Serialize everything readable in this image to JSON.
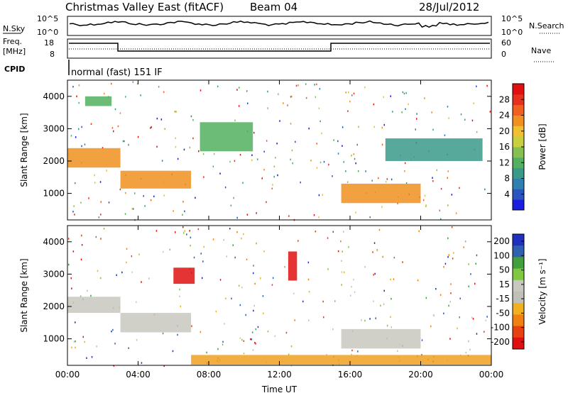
{
  "header": {
    "title": "Christmas Valley East (fitACF)",
    "beam": "Beam 04",
    "date": "28/Jul/2012"
  },
  "strip_labels": {
    "nsky": "N.Sky",
    "nsearch": "N.Search",
    "freq_line1": "Freq.",
    "freq_line2": "[MHz]",
    "nave": "Nave",
    "cpid": "CPID",
    "cpid_value": "normal (fast) 151 IF",
    "exp_labels": [
      "10^5",
      "10^0"
    ],
    "freq_ticks": [
      "18",
      "8"
    ],
    "nave_ticks": [
      "60",
      "0"
    ]
  },
  "chart_data": [
    {
      "type": "heatmap",
      "panel": "power",
      "ylabel": "Slant Range [km]",
      "xlabel": "",
      "x_ticks": [
        "00:00",
        "04:00",
        "08:00",
        "12:00",
        "16:00",
        "20:00",
        "00:00"
      ],
      "y_ticks": [
        1000,
        2000,
        3000,
        4000
      ],
      "xlim": [
        0,
        24
      ],
      "ylim": [
        180,
        4500
      ],
      "colorbar": {
        "label": "Power [dB]",
        "ticks": [
          4,
          8,
          12,
          16,
          20,
          24,
          28
        ],
        "range": [
          0,
          32
        ],
        "colors": [
          "#1a1ee0",
          "#2a55c0",
          "#2f7fb0",
          "#3a9a8a",
          "#52b060",
          "#88c050",
          "#c8d040",
          "#f0c030",
          "#f09020",
          "#f06020",
          "#e83020",
          "#e01010"
        ]
      },
      "features": [
        {
          "t_start": 0.0,
          "t_end": 3.0,
          "range_low": 1800,
          "range_high": 2400,
          "level": 22
        },
        {
          "t_start": 1.0,
          "t_end": 2.5,
          "range_low": 3700,
          "range_high": 4000,
          "level": 12
        },
        {
          "t_start": 3.0,
          "t_end": 7.0,
          "range_low": 1150,
          "range_high": 1700,
          "level": 22
        },
        {
          "t_start": 7.5,
          "t_end": 10.5,
          "range_low": 2300,
          "range_high": 3200,
          "level": 12
        },
        {
          "t_start": 15.5,
          "t_end": 20.0,
          "range_low": 700,
          "range_high": 1300,
          "level": 22
        },
        {
          "t_start": 18.0,
          "t_end": 23.5,
          "range_low": 2000,
          "range_high": 2700,
          "level": 8
        }
      ]
    },
    {
      "type": "heatmap",
      "panel": "velocity",
      "ylabel": "Slant Range [km]",
      "xlabel": "Time UT",
      "x_ticks": [
        "00:00",
        "04:00",
        "08:00",
        "12:00",
        "16:00",
        "20:00",
        "00:00"
      ],
      "y_ticks": [
        1000,
        2000,
        3000,
        4000
      ],
      "xlim": [
        0,
        24
      ],
      "ylim": [
        180,
        4500
      ],
      "colorbar": {
        "label": "Velocity [m s⁻¹]",
        "ticks": [
          200,
          100,
          50,
          15,
          -15,
          -50,
          -100,
          -200
        ],
        "colors": [
          "#2030c0",
          "#3060b0",
          "#40a040",
          "#80c840",
          "#c8c8c0",
          "#c0c0b8",
          "#f0b020",
          "#f08010",
          "#e84010",
          "#e01010"
        ]
      },
      "features": [
        {
          "t_start": 0.0,
          "t_end": 3.0,
          "range_low": 1800,
          "range_high": 2300,
          "velocity": 0
        },
        {
          "t_start": 3.0,
          "t_end": 7.0,
          "range_low": 1200,
          "range_high": 1800,
          "velocity": 0
        },
        {
          "t_start": 6.0,
          "t_end": 7.2,
          "range_low": 2700,
          "range_high": 3200,
          "velocity": -200
        },
        {
          "t_start": 12.5,
          "t_end": 13.0,
          "range_low": 2800,
          "range_high": 3700,
          "velocity": -200
        },
        {
          "t_start": 15.5,
          "t_end": 20.0,
          "range_low": 700,
          "range_high": 1300,
          "velocity": 0
        },
        {
          "t_start": 7.0,
          "t_end": 24.0,
          "range_low": 200,
          "range_high": 500,
          "velocity": -60
        }
      ]
    }
  ]
}
